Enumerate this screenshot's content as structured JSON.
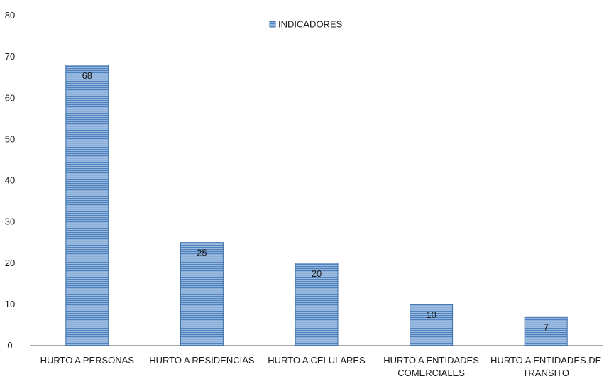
{
  "chart_data": {
    "type": "bar",
    "title": "",
    "xlabel": "",
    "ylabel": "",
    "ylim": [
      0,
      80
    ],
    "ytick_step": 10,
    "grid": false,
    "legend_position": "top-center",
    "categories": [
      [
        "HURTO A PERSONAS"
      ],
      [
        "HURTO A RESIDENCIAS"
      ],
      [
        "HURTO A CELULARES"
      ],
      [
        "HURTO A ENTIDADES",
        "COMERCIALES"
      ],
      [
        "HURTO A ENTIDADES DE",
        "TRANSITO"
      ]
    ],
    "series": [
      {
        "name": "INDICADORES",
        "values": [
          68,
          25,
          20,
          10,
          7
        ]
      }
    ],
    "colors": {
      "bar_fill": "#8fb3d8",
      "bar_stripe": "#4f81bd",
      "bar_border": "#3a6ea5",
      "axis": "#555555"
    }
  }
}
